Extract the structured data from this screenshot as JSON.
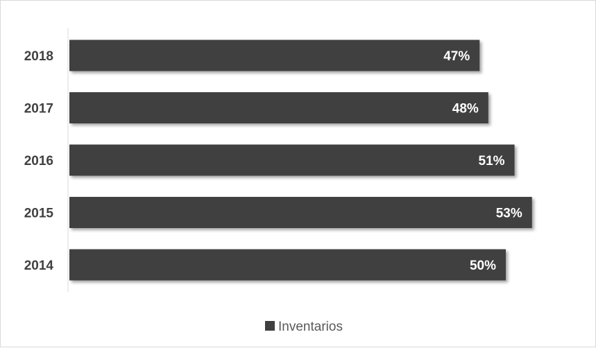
{
  "chart_data": {
    "type": "bar",
    "orientation": "horizontal",
    "categories": [
      "2018",
      "2017",
      "2016",
      "2015",
      "2014"
    ],
    "series": [
      {
        "name": "Inventarios",
        "values": [
          47,
          48,
          51,
          53,
          50
        ],
        "value_labels": [
          "47%",
          "48%",
          "51%",
          "53%",
          "50%"
        ],
        "color": "#404040"
      }
    ],
    "xlim": [
      0,
      55
    ],
    "grid": false,
    "legend": "bottom"
  }
}
